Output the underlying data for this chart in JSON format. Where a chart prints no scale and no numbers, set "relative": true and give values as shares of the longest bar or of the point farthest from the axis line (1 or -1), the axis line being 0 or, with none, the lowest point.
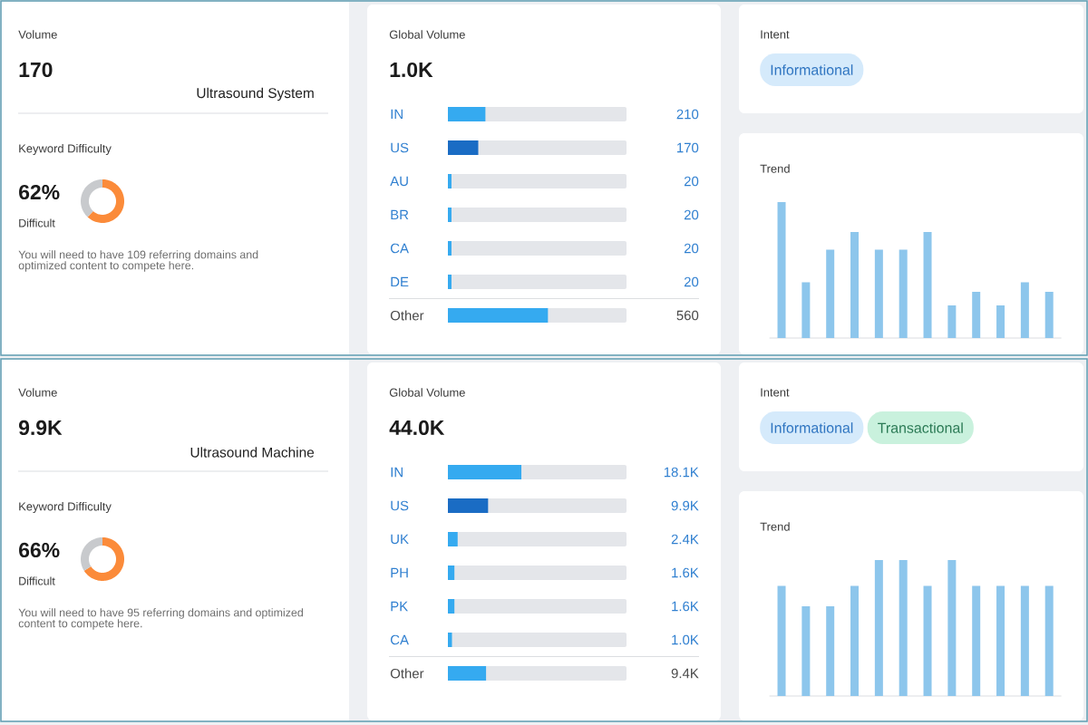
{
  "chart_data": [
    {
      "type": "other",
      "title": "Volume",
      "annotations": [
        "170",
        "Ultrasound System"
      ]
    },
    {
      "type": "donut",
      "title": "Keyword Difficulty",
      "categories": [
        null,
        null
      ],
      "values": [
        62,
        38
      ],
      "colors": [
        "#fb8b3a",
        "#c8cacd"
      ],
      "annotations": [
        "62%",
        "Difficult",
        "You will need to have 109 referring domains and optimized content to compete here."
      ]
    },
    {
      "type": "bar",
      "orientation": "horizontal",
      "title": "Global Volume",
      "subtitle": "1.0K",
      "categories": [
        "IN",
        "US",
        "AU",
        "BR",
        "CA",
        "DE",
        "Other"
      ],
      "values": [
        210,
        170,
        20,
        20,
        20,
        20,
        560
      ],
      "colors": [
        "#35aaf0",
        "#1a6cc4",
        "#35aaf0",
        "#35aaf0",
        "#35aaf0",
        "#35aaf0",
        "#35aaf0"
      ],
      "value_labels": [
        "210",
        "170",
        "20",
        "20",
        "20",
        "20",
        "560"
      ],
      "xlim": [
        0,
        1000
      ],
      "tick_labels": "y"
    },
    {
      "type": "other",
      "title": "Intent",
      "annotations": [
        "Informational"
      ]
    },
    {
      "type": "bar",
      "title": "Trend",
      "relative": true,
      "categories": [
        null,
        null,
        null,
        null,
        null,
        null,
        null,
        null,
        null,
        null,
        null,
        null
      ],
      "values": [
        1,
        0.41,
        0.65,
        0.78,
        0.65,
        0.65,
        0.78,
        0.24,
        0.34,
        0.24,
        0.41,
        0.34
      ],
      "color": "#8dc6ec",
      "tick_labels": false
    },
    {
      "type": "other",
      "title": "Volume",
      "annotations": [
        "9.9K",
        "Ultrasound Machine"
      ]
    },
    {
      "type": "donut",
      "title": "Keyword Difficulty",
      "categories": [
        null,
        null
      ],
      "values": [
        66,
        34
      ],
      "colors": [
        "#fb8b3a",
        "#c8cacd"
      ],
      "annotations": [
        "66%",
        "Difficult",
        "You will need to have 95 referring domains and optimized content to compete here."
      ]
    },
    {
      "type": "bar",
      "orientation": "horizontal",
      "title": "Global Volume",
      "subtitle": "44.0K",
      "categories": [
        "IN",
        "US",
        "UK",
        "PH",
        "PK",
        "CA",
        "Other"
      ],
      "values": [
        18100,
        9900,
        2400,
        1600,
        1600,
        1000,
        9400
      ],
      "colors": [
        "#35aaf0",
        "#1a6cc4",
        "#35aaf0",
        "#35aaf0",
        "#35aaf0",
        "#35aaf0",
        "#35aaf0"
      ],
      "value_labels": [
        "18.1K",
        "9.9K",
        "2.4K",
        "1.6K",
        "1.6K",
        "1.0K",
        "9.4K"
      ],
      "xlim": [
        0,
        44000
      ],
      "tick_labels": "y"
    },
    {
      "type": "other",
      "title": "Intent",
      "annotations": [
        "Informational",
        "Transactional"
      ]
    },
    {
      "type": "bar",
      "title": "Trend",
      "relative": true,
      "categories": [
        null,
        null,
        null,
        null,
        null,
        null,
        null,
        null,
        null,
        null,
        null,
        null
      ],
      "values": [
        0.81,
        0.66,
        0.66,
        0.81,
        1,
        1,
        0.81,
        1,
        0.81,
        0.81,
        0.81,
        0.81
      ],
      "color": "#8dc6ec",
      "tick_labels": false
    }
  ]
}
